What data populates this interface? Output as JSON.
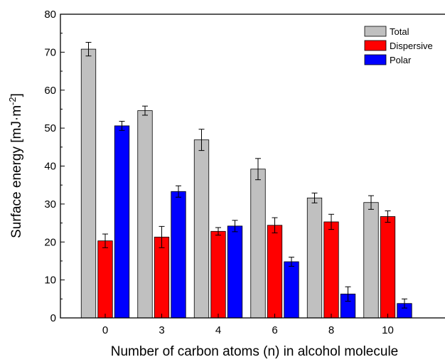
{
  "chart_data": {
    "type": "bar",
    "xlabel": "Number of carbon atoms (n) in alcohol molecule",
    "ylabel": {
      "main": "Surface energy [mJ·m",
      "sup": "-2",
      "end": "]"
    },
    "categories": [
      "0",
      "3",
      "4",
      "6",
      "8",
      "10"
    ],
    "ylim": [
      0,
      80
    ],
    "yticks": [
      "0",
      "10",
      "20",
      "30",
      "40",
      "50",
      "60",
      "70",
      "80"
    ],
    "series": [
      {
        "name": "Total",
        "color": "#c0c0c0",
        "values": [
          70.8,
          54.6,
          46.9,
          39.2,
          31.6,
          30.4
        ],
        "errors": [
          1.8,
          1.2,
          2.8,
          2.8,
          1.3,
          1.8
        ]
      },
      {
        "name": "Dispersive",
        "color": "#ff0000",
        "values": [
          20.3,
          21.3,
          22.8,
          24.4,
          25.3,
          26.7
        ],
        "errors": [
          1.8,
          2.8,
          1.0,
          2.0,
          2.0,
          1.5
        ]
      },
      {
        "name": "Polar",
        "color": "#0000ff",
        "values": [
          50.6,
          33.3,
          24.2,
          14.8,
          6.3,
          3.8
        ],
        "errors": [
          1.2,
          1.5,
          1.5,
          1.2,
          1.9,
          1.2
        ]
      }
    ],
    "legend_position": "top-right",
    "grid": false
  }
}
